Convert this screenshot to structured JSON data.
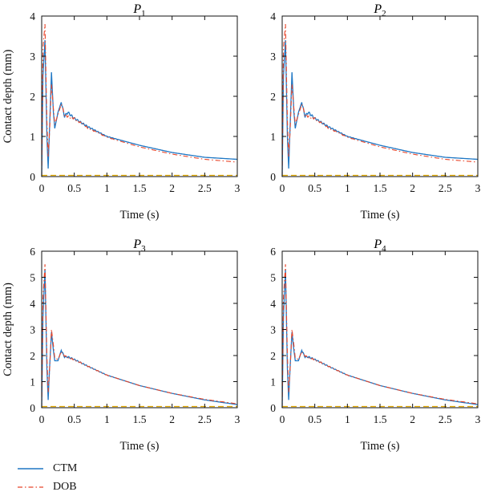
{
  "chart_data": [
    {
      "type": "line",
      "title_letter": "P",
      "title_sub": "1",
      "xlabel": "Time (s)",
      "ylabel": "Contact depth (mm)",
      "xlim": [
        0,
        3
      ],
      "ylim": [
        0,
        4
      ],
      "xticks": [
        "0",
        "0.5",
        "1",
        "1.5",
        "2",
        "2.5",
        "3"
      ],
      "yticks": [
        "0",
        "1",
        "2",
        "3",
        "4"
      ],
      "series": [
        {
          "name": "CTM",
          "x": [
            0,
            0.02,
            0.05,
            0.08,
            0.1,
            0.12,
            0.15,
            0.18,
            0.2,
            0.25,
            0.3,
            0.35,
            0.4,
            0.5,
            0.7,
            1.0,
            1.5,
            2.0,
            2.5,
            3.0
          ],
          "y": [
            0.0,
            2.5,
            3.4,
            1.0,
            0.2,
            1.2,
            2.6,
            1.6,
            1.2,
            1.6,
            1.85,
            1.5,
            1.6,
            1.45,
            1.25,
            1.0,
            0.78,
            0.6,
            0.48,
            0.43
          ]
        },
        {
          "name": "DOB",
          "x": [
            0,
            0.02,
            0.05,
            0.08,
            0.1,
            0.12,
            0.15,
            0.18,
            0.2,
            0.25,
            0.3,
            0.35,
            0.4,
            0.5,
            0.7,
            1.0,
            1.5,
            2.0,
            2.5,
            3.0
          ],
          "y": [
            0.0,
            3.2,
            3.8,
            1.4,
            0.5,
            1.1,
            2.3,
            1.7,
            1.3,
            1.55,
            1.8,
            1.55,
            1.5,
            1.45,
            1.22,
            0.98,
            0.74,
            0.56,
            0.43,
            0.36
          ]
        }
      ]
    },
    {
      "type": "line",
      "title_letter": "P",
      "title_sub": "2",
      "xlabel": "Time (s)",
      "ylabel": "",
      "xlim": [
        0,
        3
      ],
      "ylim": [
        0,
        4
      ],
      "xticks": [
        "0",
        "0.5",
        "1",
        "1.5",
        "2",
        "2.5",
        "3"
      ],
      "yticks": [
        "0",
        "1",
        "2",
        "3",
        "4"
      ],
      "series": [
        {
          "name": "CTM",
          "x": [
            0,
            0.02,
            0.05,
            0.08,
            0.1,
            0.12,
            0.15,
            0.18,
            0.2,
            0.25,
            0.3,
            0.35,
            0.4,
            0.5,
            0.7,
            1.0,
            1.5,
            2.0,
            2.5,
            3.0
          ],
          "y": [
            0.0,
            2.5,
            3.4,
            1.0,
            0.2,
            1.2,
            2.6,
            1.6,
            1.2,
            1.6,
            1.85,
            1.5,
            1.6,
            1.45,
            1.25,
            1.0,
            0.78,
            0.6,
            0.48,
            0.43
          ]
        },
        {
          "name": "DOB",
          "x": [
            0,
            0.02,
            0.05,
            0.08,
            0.1,
            0.12,
            0.15,
            0.18,
            0.2,
            0.25,
            0.3,
            0.35,
            0.4,
            0.5,
            0.7,
            1.0,
            1.5,
            2.0,
            2.5,
            3.0
          ],
          "y": [
            0.0,
            3.2,
            3.8,
            1.4,
            0.5,
            1.1,
            2.3,
            1.7,
            1.3,
            1.55,
            1.8,
            1.55,
            1.5,
            1.45,
            1.22,
            0.98,
            0.74,
            0.56,
            0.43,
            0.36
          ]
        }
      ]
    },
    {
      "type": "line",
      "title_letter": "P",
      "title_sub": "3",
      "xlabel": "Time (s)",
      "ylabel": "Contact depth (mm)",
      "xlim": [
        0,
        3
      ],
      "ylim": [
        0,
        6
      ],
      "xticks": [
        "0",
        "0.5",
        "1",
        "1.5",
        "2",
        "2.5",
        "3"
      ],
      "yticks": [
        "0",
        "1",
        "2",
        "3",
        "4",
        "5",
        "6"
      ],
      "series": [
        {
          "name": "CTM",
          "x": [
            0,
            0.02,
            0.05,
            0.08,
            0.1,
            0.12,
            0.15,
            0.18,
            0.2,
            0.25,
            0.3,
            0.35,
            0.4,
            0.5,
            0.7,
            1.0,
            1.5,
            2.0,
            2.5,
            3.0
          ],
          "y": [
            0.0,
            3.5,
            5.3,
            1.5,
            0.3,
            1.5,
            2.9,
            2.2,
            1.8,
            1.8,
            2.2,
            1.95,
            1.95,
            1.85,
            1.6,
            1.25,
            0.85,
            0.55,
            0.3,
            0.12
          ]
        },
        {
          "name": "DOB",
          "x": [
            0,
            0.02,
            0.05,
            0.08,
            0.1,
            0.12,
            0.15,
            0.18,
            0.2,
            0.25,
            0.3,
            0.35,
            0.4,
            0.5,
            0.7,
            1.0,
            1.5,
            2.0,
            2.5,
            3.0
          ],
          "y": [
            0.0,
            4.2,
            5.5,
            2.0,
            0.6,
            1.4,
            3.0,
            2.4,
            1.9,
            1.85,
            2.15,
            2.0,
            1.9,
            1.85,
            1.6,
            1.25,
            0.85,
            0.55,
            0.32,
            0.15
          ]
        }
      ]
    },
    {
      "type": "line",
      "title_letter": "P",
      "title_sub": "4",
      "xlabel": "Time (s)",
      "ylabel": "",
      "xlim": [
        0,
        3
      ],
      "ylim": [
        0,
        6
      ],
      "xticks": [
        "0",
        "0.5",
        "1",
        "1.5",
        "2",
        "2.5",
        "3"
      ],
      "yticks": [
        "0",
        "1",
        "2",
        "3",
        "4",
        "5",
        "6"
      ],
      "series": [
        {
          "name": "CTM",
          "x": [
            0,
            0.02,
            0.05,
            0.08,
            0.1,
            0.12,
            0.15,
            0.18,
            0.2,
            0.25,
            0.3,
            0.35,
            0.4,
            0.5,
            0.7,
            1.0,
            1.5,
            2.0,
            2.5,
            3.0
          ],
          "y": [
            0.0,
            3.5,
            5.3,
            1.5,
            0.3,
            1.5,
            2.9,
            2.2,
            1.8,
            1.8,
            2.2,
            1.95,
            1.95,
            1.85,
            1.6,
            1.25,
            0.85,
            0.55,
            0.3,
            0.12
          ]
        },
        {
          "name": "DOB",
          "x": [
            0,
            0.02,
            0.05,
            0.08,
            0.1,
            0.12,
            0.15,
            0.18,
            0.2,
            0.25,
            0.3,
            0.35,
            0.4,
            0.5,
            0.7,
            1.0,
            1.5,
            2.0,
            2.5,
            3.0
          ],
          "y": [
            0.0,
            4.2,
            5.5,
            2.0,
            0.6,
            1.4,
            3.0,
            2.4,
            1.9,
            1.85,
            2.15,
            2.0,
            1.9,
            1.85,
            1.6,
            1.25,
            0.85,
            0.55,
            0.32,
            0.15
          ]
        }
      ]
    }
  ],
  "legend": {
    "placement": "bottom-left",
    "entries": [
      {
        "label": "CTM",
        "style": "solid"
      },
      {
        "label": "DOB",
        "style": "dash-dot"
      }
    ]
  },
  "colors": {
    "CTM": "#1f77c4",
    "DOB": "#e8452a",
    "baseline": "#e0a800",
    "axes": "#111111"
  }
}
